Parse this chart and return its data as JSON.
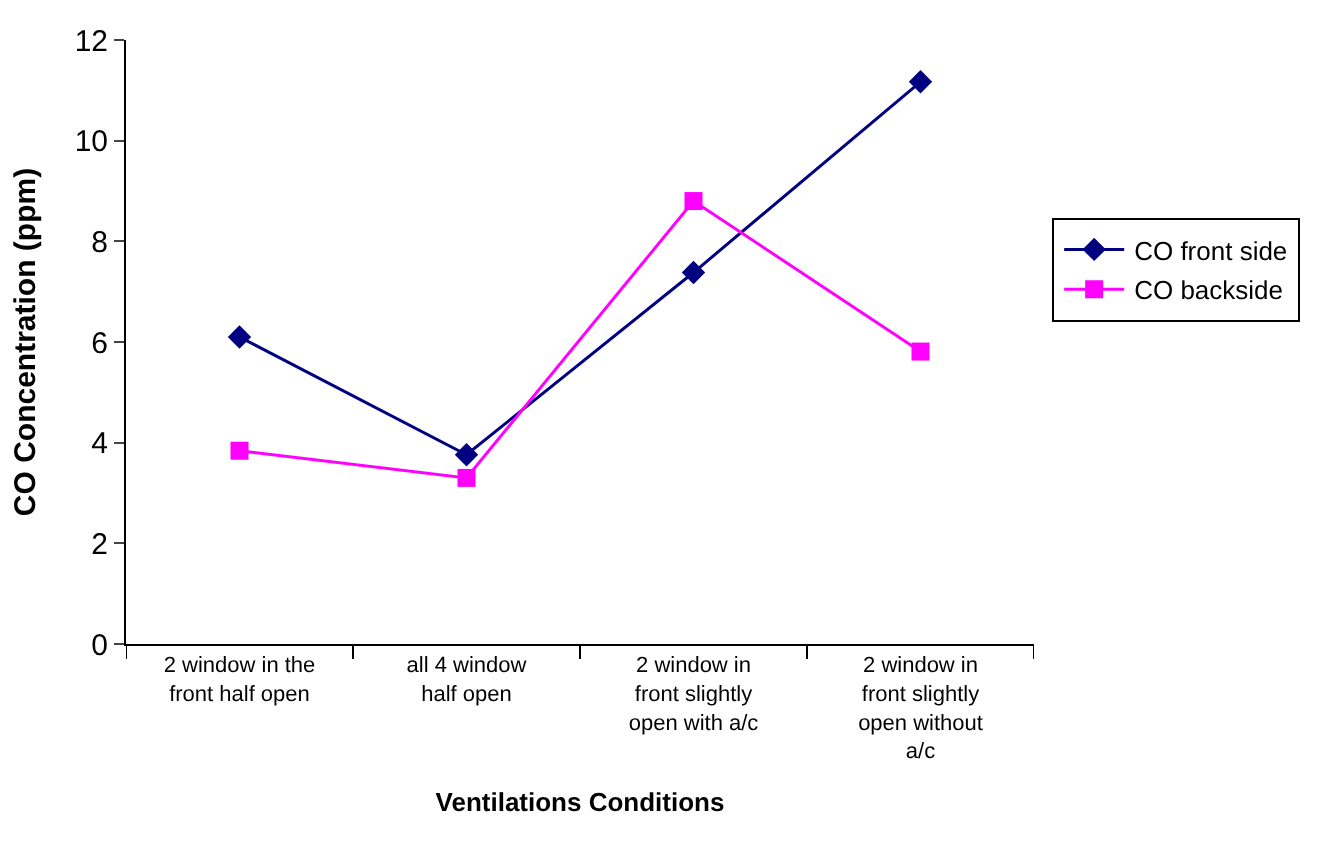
{
  "chart_data": {
    "type": "line",
    "xlabel": "Ventilations Conditions",
    "ylabel": "CO Concentration (ppm)",
    "categories": [
      "2 window in the\nfront half open",
      "all 4 window\nhalf open",
      "2 window in\nfront slightly\nopen with a/c",
      "2 window in\nfront slightly\nopen without\na/c"
    ],
    "series": [
      {
        "name": "CO front side",
        "color": "#000080",
        "marker": "diamond",
        "values": [
          6.1,
          3.76,
          7.38,
          11.17
        ]
      },
      {
        "name": "CO backside",
        "color": "#ff00ff",
        "marker": "square",
        "values": [
          3.84,
          3.3,
          8.8,
          5.81
        ]
      }
    ],
    "ylim": [
      0,
      12
    ],
    "yticks": [
      0,
      2,
      4,
      6,
      8,
      10,
      12
    ],
    "legend": "right"
  }
}
